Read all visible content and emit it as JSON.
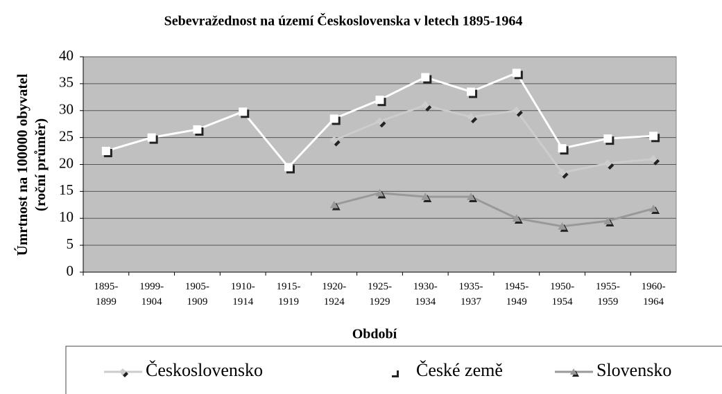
{
  "chart_data": {
    "type": "line",
    "title": "Sebevražednost na území Československa v letech 1895-1964",
    "xlabel": "Období",
    "ylabel": [
      "Úmrtnost na 100000 obyvatel",
      "(roční průměr)"
    ],
    "categories": [
      "1895-1899",
      "1999-1904",
      "1905-1909",
      "1910-1914",
      "1915-1919",
      "1920-1924",
      "1925-1929",
      "1930-1934",
      "1935-1937",
      "1945-1949",
      "1950-1954",
      "1955-1959",
      "1960-1964"
    ],
    "series": [
      {
        "name": "Československo",
        "color": "#cccccc",
        "marker": "diamond",
        "values": [
          null,
          null,
          null,
          null,
          null,
          24.5,
          28,
          31,
          28.8,
          30,
          18.5,
          20.2,
          21
        ]
      },
      {
        "name": "České země",
        "color": "#ffffff",
        "marker": "square",
        "values": [
          22.5,
          25,
          26.5,
          29.8,
          19.5,
          28.5,
          32,
          36.2,
          33.5,
          37,
          23,
          24.8,
          25.3
        ]
      },
      {
        "name": "Slovensko",
        "color": "#999999",
        "marker": "triangle",
        "values": [
          null,
          null,
          null,
          null,
          null,
          12.5,
          14.7,
          14,
          14,
          10,
          8.5,
          9.5,
          11.8
        ]
      }
    ],
    "ylim": [
      0,
      40
    ],
    "yticks": [
      0,
      5,
      10,
      15,
      20,
      25,
      30,
      35,
      40
    ],
    "grid": true,
    "legend": "bottom"
  }
}
